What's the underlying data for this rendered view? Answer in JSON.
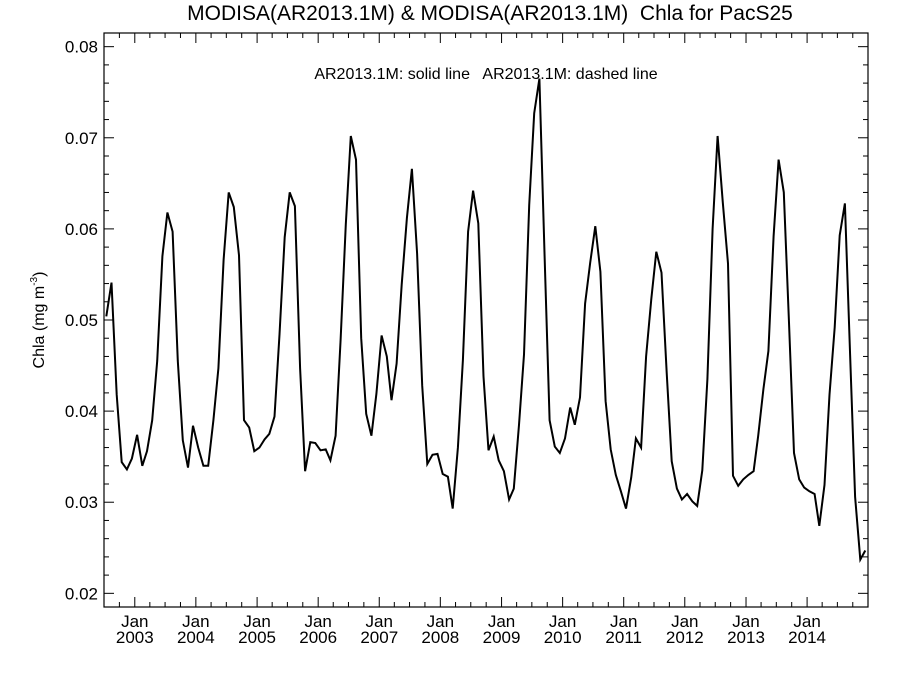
{
  "chart_data": {
    "type": "line",
    "title": "MODISA(AR2013.1M) & MODISA(AR2013.1M)  Chla for PacS25",
    "annotation": "AR2013.1M: solid line   AR2013.1M: dashed line",
    "ylabel": "Chla (mg m",
    "ylabel_superscript": "-3",
    "ylabel_close": ")",
    "ylim": [
      0.0185,
      0.0815
    ],
    "xlim": [
      "2002-07-01",
      "2014-12-31"
    ],
    "y_ticks": [
      {
        "value": 0.02,
        "label": "0.02"
      },
      {
        "value": 0.03,
        "label": "0.03"
      },
      {
        "value": 0.04,
        "label": "0.04"
      },
      {
        "value": 0.05,
        "label": "0.05"
      },
      {
        "value": 0.06,
        "label": "0.06"
      },
      {
        "value": 0.07,
        "label": "0.07"
      },
      {
        "value": 0.08,
        "label": "0.08"
      }
    ],
    "x_ticks": [
      {
        "date": "2003-01-01",
        "month": "Jan",
        "year": "2003"
      },
      {
        "date": "2004-01-01",
        "month": "Jan",
        "year": "2004"
      },
      {
        "date": "2005-01-01",
        "month": "Jan",
        "year": "2005"
      },
      {
        "date": "2006-01-01",
        "month": "Jan",
        "year": "2006"
      },
      {
        "date": "2007-01-01",
        "month": "Jan",
        "year": "2007"
      },
      {
        "date": "2008-01-01",
        "month": "Jan",
        "year": "2008"
      },
      {
        "date": "2009-01-01",
        "month": "Jan",
        "year": "2009"
      },
      {
        "date": "2010-01-01",
        "month": "Jan",
        "year": "2010"
      },
      {
        "date": "2011-01-01",
        "month": "Jan",
        "year": "2011"
      },
      {
        "date": "2012-01-01",
        "month": "Jan",
        "year": "2012"
      },
      {
        "date": "2013-01-01",
        "month": "Jan",
        "year": "2013"
      },
      {
        "date": "2014-01-01",
        "month": "Jan",
        "year": "2014"
      }
    ],
    "grid": false,
    "series": [
      {
        "line_style": "solid",
        "color": "#000000",
        "start": "2002-07",
        "values": [
          0.0504,
          0.0541,
          0.0418,
          0.0344,
          0.0336,
          0.0348,
          0.0374,
          0.034,
          0.0356,
          0.039,
          0.0455,
          0.057,
          0.0618,
          0.0597,
          0.0455,
          0.0368,
          0.0338,
          0.0384,
          0.036,
          0.034,
          0.034,
          0.039,
          0.0447,
          0.0566,
          0.064,
          0.0624,
          0.0571,
          0.039,
          0.0382,
          0.0356,
          0.036,
          0.0369,
          0.0375,
          0.0394,
          0.0484,
          0.0591,
          0.064,
          0.0625,
          0.0447,
          0.0334,
          0.0366,
          0.0365,
          0.0357,
          0.0358,
          0.0346,
          0.0373,
          0.0478,
          0.0605,
          0.0702,
          0.0676,
          0.048,
          0.0397,
          0.0373,
          0.0419,
          0.0483,
          0.046,
          0.0412,
          0.0452,
          0.0539,
          0.0612,
          0.0666,
          0.0573,
          0.0428,
          0.0342,
          0.0352,
          0.0353,
          0.0331,
          0.0328,
          0.0293,
          0.036,
          0.0456,
          0.0597,
          0.0642,
          0.0606,
          0.0438,
          0.0357,
          0.0372,
          0.0346,
          0.0334,
          0.0303,
          0.0315,
          0.0385,
          0.0462,
          0.0626,
          0.0727,
          0.0765,
          0.057,
          0.039,
          0.0361,
          0.0354,
          0.037,
          0.0404,
          0.0385,
          0.0415,
          0.0518,
          0.0563,
          0.0603,
          0.0553,
          0.0411,
          0.0358,
          0.033,
          0.0312,
          0.0293,
          0.0327,
          0.037,
          0.036,
          0.046,
          0.0523,
          0.0575,
          0.0552,
          0.0442,
          0.0345,
          0.0315,
          0.0303,
          0.0309,
          0.0301,
          0.0296,
          0.0335,
          0.0435,
          0.06,
          0.0702,
          0.0629,
          0.0562,
          0.0329,
          0.0318,
          0.0325,
          0.033,
          0.0334,
          0.0373,
          0.0424,
          0.0466,
          0.0592,
          0.0676,
          0.064,
          0.0497,
          0.0354,
          0.0325,
          0.0316,
          0.0312,
          0.0309,
          0.0274,
          0.0319,
          0.0418,
          0.0492,
          0.0593,
          0.0628,
          0.0462,
          0.0306,
          0.0237,
          0.0247
        ]
      }
    ]
  }
}
